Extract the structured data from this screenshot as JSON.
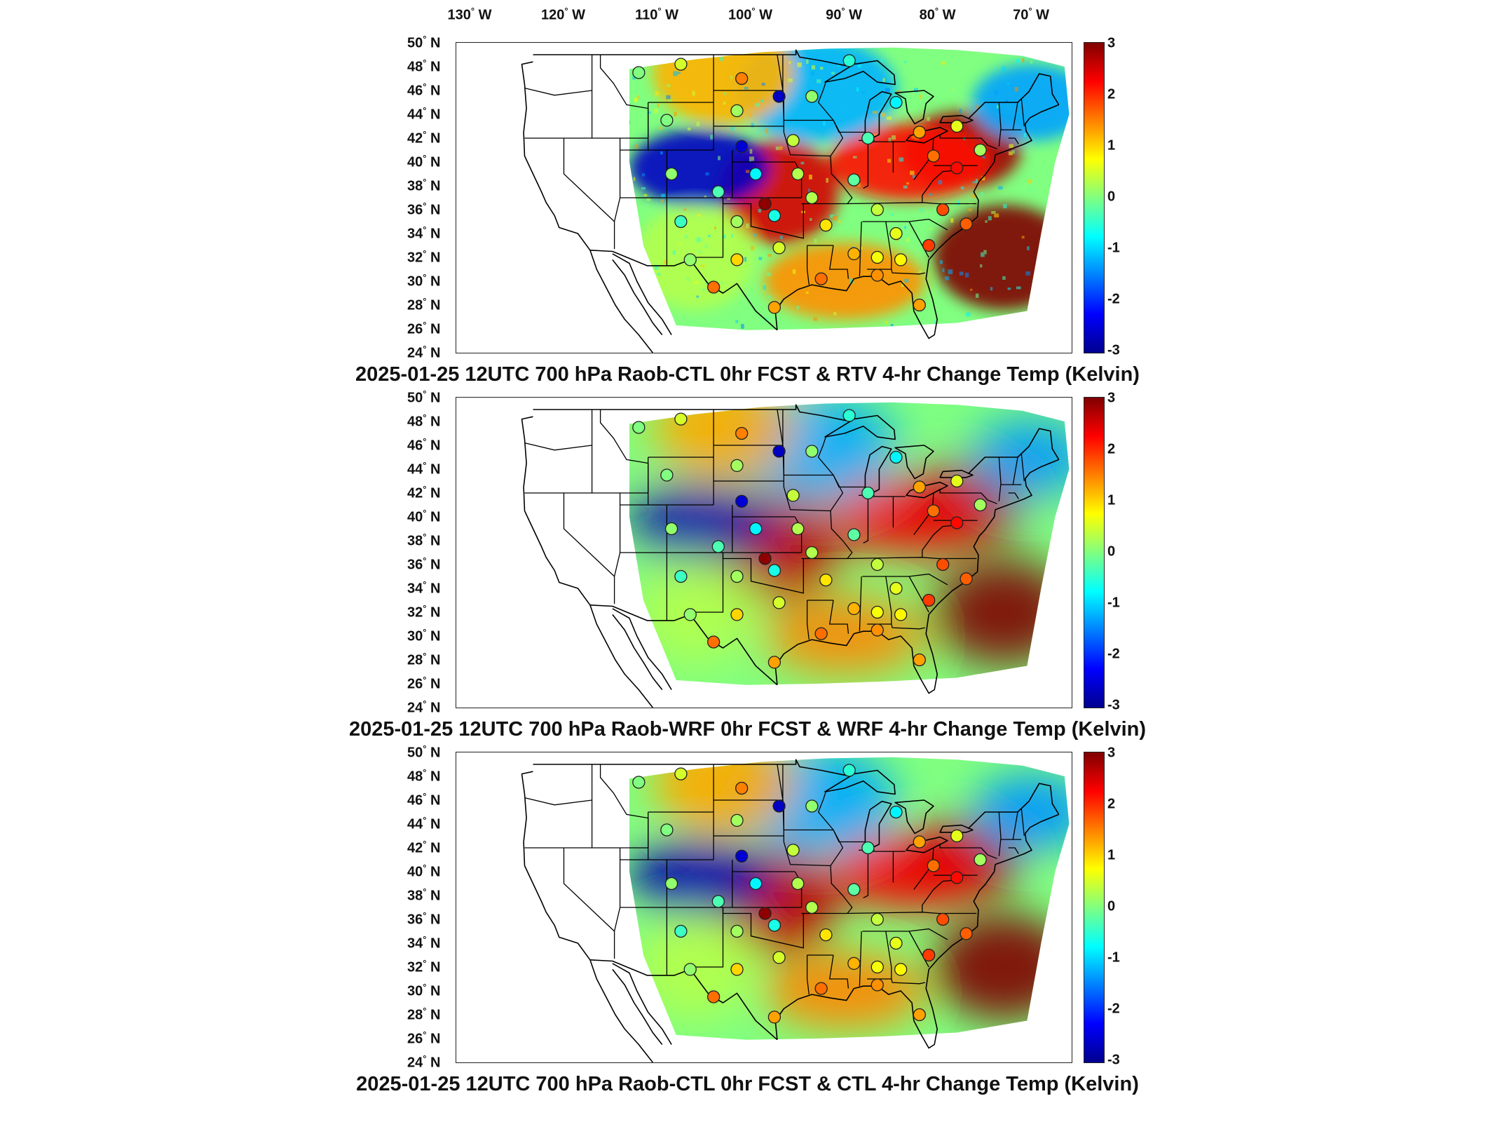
{
  "lon_labels": [
    "130",
    "120",
    "110",
    "100",
    "90",
    "80",
    "70"
  ],
  "lon_suffix": "W",
  "lat_labels": [
    "50",
    "48",
    "46",
    "44",
    "42",
    "40",
    "38",
    "36",
    "34",
    "32",
    "30",
    "28",
    "26",
    "24"
  ],
  "lat_suffix": "N",
  "degree_symbol": "°",
  "colorbar": {
    "ticks": [
      "3",
      "2",
      "1",
      "0",
      "-1",
      "-2",
      "-3"
    ],
    "colormap": "jet",
    "range": [
      -3,
      3
    ]
  },
  "panels": [
    {
      "title": "2025-01-25 12UTC 700 hPa Raob-CTL 0hr FCST & RTV 4-hr Change Temp (Kelvin)",
      "variant": "rtv"
    },
    {
      "title": "2025-01-25 12UTC 700 hPa Raob-WRF 0hr FCST & WRF 4-hr Change Temp (Kelvin)",
      "variant": "wrf"
    },
    {
      "title": "2025-01-25 12UTC 700 hPa Raob-CTL 0hr FCST & CTL 4-hr Change Temp (Kelvin)",
      "variant": "ctl"
    }
  ],
  "field_features": [
    {
      "region": "eastern-us-warm-core",
      "lon": -77.5,
      "lat": 41.0,
      "value": 2.8
    },
    {
      "region": "atlantic-offshore-warm",
      "lon": -73.0,
      "lat": 32.0,
      "value": 3.0
    },
    {
      "region": "upper-ohio-valley-warm",
      "lon": -83.0,
      "lat": 40.0,
      "value": 2.2
    },
    {
      "region": "southern-plains-warm",
      "lon": -97.0,
      "lat": 37.5,
      "value": 2.5
    },
    {
      "region": "colorado-cold",
      "lon": -105.5,
      "lat": 39.5,
      "value": -2.6
    },
    {
      "region": "upper-midwest-cool",
      "lon": -93.0,
      "lat": 46.0,
      "value": -1.2
    },
    {
      "region": "new-england-cool",
      "lon": -70.0,
      "lat": 45.0,
      "value": -1.3
    },
    {
      "region": "montana-warm",
      "lon": -103.0,
      "lat": 47.5,
      "value": 1.2
    },
    {
      "region": "gulf-coast-warm",
      "lon": -90.0,
      "lat": 30.0,
      "value": 1.4
    },
    {
      "region": "southwest-mild",
      "lon": -106.0,
      "lat": 32.0,
      "value": 0.3
    }
  ],
  "stations": [
    {
      "lon": -112.0,
      "lat": 47.5,
      "value": 0.0
    },
    {
      "lon": -107.5,
      "lat": 48.2,
      "value": 0.5
    },
    {
      "lon": -101.0,
      "lat": 47.0,
      "value": 1.5
    },
    {
      "lon": -97.0,
      "lat": 45.5,
      "value": -2.6
    },
    {
      "lon": -101.5,
      "lat": 44.3,
      "value": 0.2
    },
    {
      "lon": -109.0,
      "lat": 43.5,
      "value": 0.0
    },
    {
      "lon": -101.0,
      "lat": 41.3,
      "value": -2.5
    },
    {
      "lon": -95.5,
      "lat": 41.8,
      "value": 0.4
    },
    {
      "lon": -93.5,
      "lat": 45.5,
      "value": 0.1
    },
    {
      "lon": -89.5,
      "lat": 48.5,
      "value": -0.5
    },
    {
      "lon": -87.5,
      "lat": 42.0,
      "value": -0.3
    },
    {
      "lon": -84.5,
      "lat": 45.0,
      "value": -0.8
    },
    {
      "lon": -82.0,
      "lat": 42.5,
      "value": 1.3
    },
    {
      "lon": -78.0,
      "lat": 43.0,
      "value": 0.6
    },
    {
      "lon": -75.5,
      "lat": 41.0,
      "value": 0.2
    },
    {
      "lon": -78.0,
      "lat": 39.5,
      "value": 2.2
    },
    {
      "lon": -80.5,
      "lat": 40.5,
      "value": 1.6
    },
    {
      "lon": -79.5,
      "lat": 36.0,
      "value": 1.8
    },
    {
      "lon": -81.0,
      "lat": 33.0,
      "value": 1.9
    },
    {
      "lon": -84.5,
      "lat": 34.0,
      "value": 0.6
    },
    {
      "lon": -86.5,
      "lat": 36.0,
      "value": 0.4
    },
    {
      "lon": -89.0,
      "lat": 38.5,
      "value": -0.2
    },
    {
      "lon": -95.0,
      "lat": 39.0,
      "value": 0.3
    },
    {
      "lon": -98.5,
      "lat": 36.5,
      "value": 2.9
    },
    {
      "lon": -99.5,
      "lat": 39.0,
      "value": -0.8
    },
    {
      "lon": -103.5,
      "lat": 37.5,
      "value": -0.3
    },
    {
      "lon": -108.5,
      "lat": 39.0,
      "value": 0.1
    },
    {
      "lon": -107.5,
      "lat": 35.0,
      "value": -0.4
    },
    {
      "lon": -101.5,
      "lat": 35.0,
      "value": 0.2
    },
    {
      "lon": -97.5,
      "lat": 35.5,
      "value": -0.6
    },
    {
      "lon": -93.5,
      "lat": 37.0,
      "value": 0.3
    },
    {
      "lon": -92.0,
      "lat": 34.7,
      "value": 0.9
    },
    {
      "lon": -97.0,
      "lat": 32.8,
      "value": 0.5
    },
    {
      "lon": -101.5,
      "lat": 31.8,
      "value": 1.0
    },
    {
      "lon": -106.5,
      "lat": 31.8,
      "value": 0.1
    },
    {
      "lon": -104.0,
      "lat": 29.5,
      "value": 1.6
    },
    {
      "lon": -97.5,
      "lat": 27.8,
      "value": 1.3
    },
    {
      "lon": -92.5,
      "lat": 30.2,
      "value": 1.6
    },
    {
      "lon": -89.0,
      "lat": 32.3,
      "value": 1.2
    },
    {
      "lon": -86.5,
      "lat": 30.5,
      "value": 1.4
    },
    {
      "lon": -82.0,
      "lat": 28.0,
      "value": 1.3
    },
    {
      "lon": -86.5,
      "lat": 32.0,
      "value": 0.7
    },
    {
      "lon": -84.0,
      "lat": 31.8,
      "value": 0.8
    },
    {
      "lon": -77.0,
      "lat": 34.8,
      "value": 1.7
    }
  ]
}
